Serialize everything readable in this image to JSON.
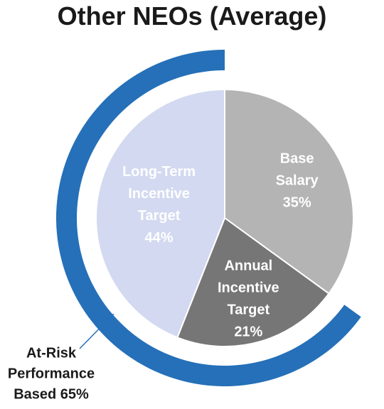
{
  "chart_data": {
    "type": "pie",
    "title": "Other NEOs (Average)",
    "slices": [
      {
        "label_lines": [
          "Base",
          "Salary"
        ],
        "value": 35,
        "value_label": "35%",
        "color": "#b4b4b4",
        "text_color": "#ffffff"
      },
      {
        "label_lines": [
          "Annual",
          "Incentive",
          "Target"
        ],
        "value": 21,
        "value_label": "21%",
        "color": "#767676",
        "text_color": "#ffffff"
      },
      {
        "label_lines": [
          "Long-Term",
          "Incentive",
          "Target"
        ],
        "value": 44,
        "value_label": "44%",
        "color": "#d2d9f0",
        "text_color": "#ffffff"
      }
    ],
    "outer_ring": {
      "label_lines": [
        "At-Risk",
        "Performance",
        "Based 65%"
      ],
      "value": 65,
      "color": "#2570b8"
    },
    "legend": "none"
  }
}
